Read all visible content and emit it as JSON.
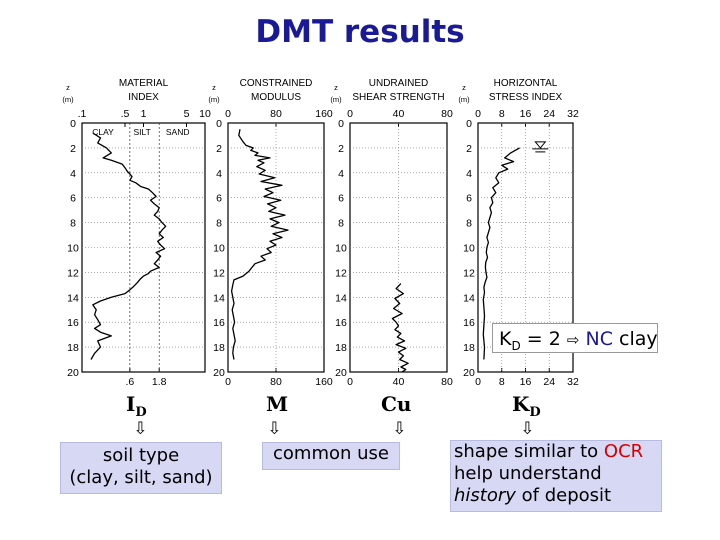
{
  "slide": {
    "title": "DMT results"
  },
  "chart_data": [
    {
      "type": "line",
      "title": "MATERIAL INDEX",
      "zlabel": "Z (m)",
      "xscale": "log",
      "xlim": [
        0.1,
        10
      ],
      "ylim": [
        20,
        0
      ],
      "top_ticks": [
        ".1",
        ".5",
        "1",
        "5",
        "10"
      ],
      "bottom_ticks": [
        ".6",
        "1.8"
      ],
      "y_ticks": [
        "0",
        "2",
        "4",
        "6",
        "8",
        "10",
        "12",
        "14",
        "16",
        "18",
        "20"
      ],
      "zones": [
        "CLAY",
        "SILT",
        "SAND"
      ],
      "zone_boundaries": [
        0.6,
        1.8
      ],
      "series": [
        {
          "x": [
            0.15,
            0.2,
            0.18,
            0.25,
            0.3,
            0.22,
            0.3,
            0.45,
            0.5,
            0.55,
            0.6,
            0.65,
            0.6,
            0.75,
            0.9,
            1.2,
            1.4,
            1.6,
            1.3,
            1.5,
            1.8,
            1.7,
            1.5,
            1.8,
            2.0,
            2.3,
            2.0,
            1.8,
            2.1,
            1.7,
            1.9,
            2.2,
            1.6,
            1.9,
            1.7,
            1.5,
            1.8,
            1.3,
            1.2,
            1.0,
            0.9,
            0.8,
            0.7,
            0.6,
            0.5,
            0.3,
            0.2,
            0.15,
            0.17,
            0.16,
            0.18,
            0.2,
            0.16,
            0.2,
            0.3,
            0.18,
            0.2,
            0.16,
            0.14
          ],
          "z": [
            0.8,
            1.2,
            1.6,
            2.0,
            2.4,
            2.8,
            3.0,
            3.3,
            3.6,
            3.9,
            4.1,
            4.3,
            4.6,
            4.8,
            5.1,
            5.3,
            5.6,
            5.9,
            6.2,
            6.5,
            6.8,
            7.1,
            7.4,
            7.7,
            8.0,
            8.3,
            8.6,
            8.9,
            9.2,
            9.5,
            9.8,
            10.1,
            10.4,
            10.7,
            11.0,
            11.3,
            11.6,
            11.9,
            12.1,
            12.3,
            12.5,
            12.8,
            13.1,
            13.4,
            13.7,
            14.0,
            14.3,
            14.6,
            15.0,
            15.4,
            15.8,
            16.2,
            16.5,
            16.8,
            17.1,
            17.5,
            18.0,
            18.5,
            19.0
          ]
        }
      ]
    },
    {
      "type": "line",
      "title": "CONSTRAINED MODULUS",
      "zlabel": "Z (m)",
      "xlim": [
        0,
        160
      ],
      "ylim": [
        20,
        0
      ],
      "top_ticks": [
        "0",
        "80",
        "160"
      ],
      "bottom_ticks": [
        "0",
        "80",
        "160"
      ],
      "y_ticks": [
        "0",
        "2",
        "4",
        "6",
        "8",
        "10",
        "12",
        "14",
        "16",
        "18",
        "20"
      ],
      "series": [
        {
          "x": [
            20,
            18,
            25,
            30,
            42,
            38,
            50,
            45,
            70,
            50,
            60,
            48,
            62,
            52,
            78,
            55,
            90,
            62,
            75,
            60,
            88,
            66,
            80,
            68,
            95,
            70,
            85,
            72,
            100,
            75,
            90,
            70,
            80,
            65,
            72,
            55,
            62,
            45,
            40,
            35,
            30,
            25,
            10,
            8,
            6,
            8,
            10,
            7,
            9,
            11,
            8,
            10,
            12,
            9,
            8,
            10
          ],
          "z": [
            0.5,
            1.0,
            1.5,
            1.8,
            2.0,
            2.2,
            2.4,
            2.6,
            2.8,
            3.0,
            3.2,
            3.5,
            3.8,
            4.1,
            4.4,
            4.7,
            5.0,
            5.3,
            5.6,
            5.9,
            6.2,
            6.5,
            6.8,
            7.1,
            7.4,
            7.7,
            8.0,
            8.3,
            8.6,
            8.9,
            9.2,
            9.5,
            9.8,
            10.1,
            10.4,
            10.7,
            11.0,
            11.3,
            11.6,
            11.9,
            12.1,
            12.3,
            12.6,
            13.0,
            13.5,
            14.0,
            14.5,
            15.0,
            15.5,
            16.0,
            16.5,
            17.0,
            17.5,
            18.0,
            18.5,
            19.0
          ]
        }
      ]
    },
    {
      "type": "line",
      "title": "UNDRAINED SHEAR STRENGTH",
      "zlabel": "Z (m)",
      "xlim": [
        0,
        80
      ],
      "ylim": [
        20,
        0
      ],
      "top_ticks": [
        "0",
        "40",
        "80"
      ],
      "bottom_ticks": [
        "0",
        "40",
        "80"
      ],
      "y_ticks": [
        "0",
        "2",
        "4",
        "6",
        "8",
        "10",
        "12",
        "14",
        "16",
        "18",
        "20"
      ],
      "series": [
        {
          "x": [
            42,
            38,
            44,
            37,
            41,
            36,
            43,
            35,
            38,
            40,
            37,
            42,
            39,
            45,
            38,
            46,
            40,
            44,
            41,
            48,
            42,
            46,
            43
          ],
          "z": [
            12.9,
            13.3,
            13.7,
            14.1,
            14.5,
            14.9,
            15.3,
            15.7,
            16.0,
            16.3,
            16.6,
            16.9,
            17.2,
            17.5,
            17.8,
            18.1,
            18.4,
            18.7,
            19.0,
            19.3,
            19.6,
            19.8,
            20.0
          ]
        }
      ]
    },
    {
      "type": "line",
      "title": "HORIZONTAL STRESS INDEX",
      "zlabel": "Z (m)",
      "xlim": [
        0,
        32
      ],
      "ylim": [
        20,
        0
      ],
      "top_ticks": [
        "0",
        "8",
        "16",
        "24",
        "32"
      ],
      "bottom_ticks": [
        "0",
        "8",
        "16",
        "24",
        "32"
      ],
      "y_ticks": [
        "0",
        "2",
        "4",
        "6",
        "8",
        "10",
        "12",
        "14",
        "16",
        "18",
        "20"
      ],
      "series": [
        {
          "x": [
            14,
            11,
            9,
            12,
            8,
            10,
            7,
            6,
            7,
            5,
            6,
            4.5,
            5,
            4,
            4.5,
            4,
            3.5,
            4,
            3.5,
            3,
            3.5,
            3,
            2.8,
            3.2,
            2.6,
            2.5,
            2.7,
            3,
            2.4,
            2,
            2.2,
            1.8,
            2,
            2.2,
            2,
            1.8,
            2.2,
            2
          ],
          "z": [
            2.0,
            2.4,
            2.8,
            3.1,
            3.4,
            3.7,
            4.0,
            4.4,
            4.8,
            5.2,
            5.6,
            6.0,
            6.4,
            6.8,
            7.2,
            7.6,
            8.0,
            8.4,
            8.8,
            9.2,
            9.6,
            10.0,
            10.4,
            10.8,
            11.2,
            11.6,
            12.0,
            12.4,
            12.8,
            13.2,
            13.6,
            14.2,
            14.8,
            15.5,
            16.2,
            17.0,
            18.0,
            19.0
          ]
        }
      ],
      "annotation": {
        "x": 21,
        "z": 2.0,
        "symbol": "water-table"
      }
    }
  ],
  "annotations": {
    "id_symbol": "I",
    "id_sub": "D",
    "m_symbol": "M",
    "cu_symbol": "Cu",
    "kd_symbol": "K",
    "kd_sub": "D",
    "soil_type_line1": "soil type",
    "soil_type_line2": "(clay, silt, sand)",
    "common_use": "common use",
    "shape_line1_a": "shape similar to ",
    "shape_line1_b": "OCR",
    "shape_line2": "help understand",
    "shape_line3_a": "history",
    "shape_line3_b": " of deposit",
    "kd_box_k": "K",
    "kd_box_sub": "D",
    "kd_box_eq": " = 2 ",
    "kd_box_nc": "NC",
    "kd_box_clay": " clay",
    "arrow_glyph": "⇨",
    "colors": {
      "title": "#1a1a99",
      "box": "#d6d8f4",
      "highlight": "#d40000"
    }
  }
}
